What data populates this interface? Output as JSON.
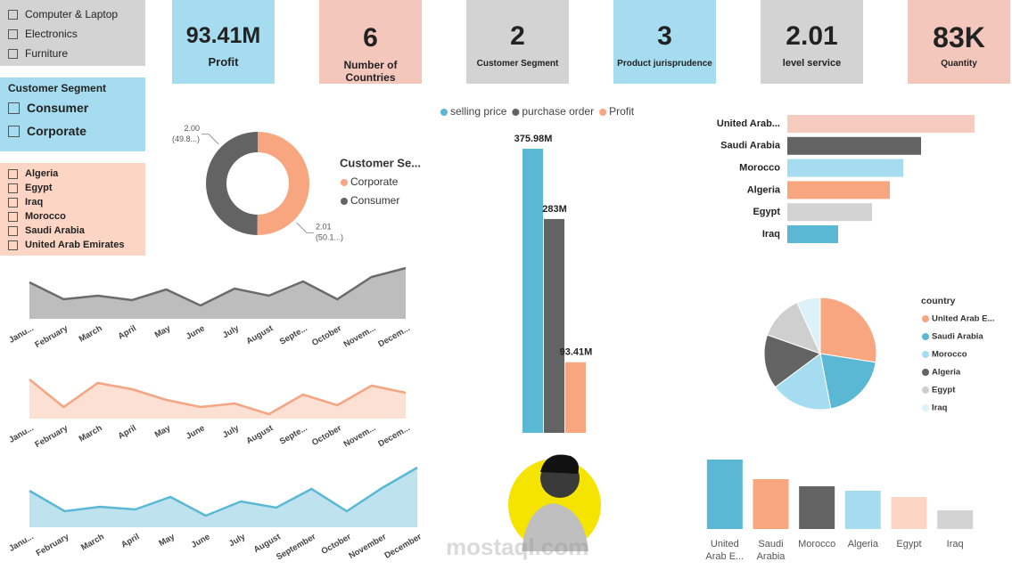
{
  "slicers": [
    {
      "items": [
        "Computer & Laptop",
        "Electronics",
        "Furniture"
      ]
    },
    {
      "title": "Customer Segment",
      "items": [
        "Consumer",
        "Corporate"
      ]
    },
    {
      "items": [
        "Algeria",
        "Egypt",
        "Iraq",
        "Morocco",
        "Saudi Arabia",
        "United Arab Emirates"
      ]
    }
  ],
  "cards": [
    {
      "value": "93.41M",
      "label": "Profit"
    },
    {
      "value": 6,
      "label": "Number of Countries"
    },
    {
      "value": 2,
      "label": "Customer Segment"
    },
    {
      "value": 3,
      "label": "Product jurisprudence"
    },
    {
      "value": 2.01,
      "label": "level service"
    },
    {
      "value": "83K",
      "label": "Quantity"
    }
  ],
  "watermark": "mostaql.com",
  "chart_data": [
    {
      "type": "donut",
      "legend_title": "Customer Se...",
      "categories": [
        "Corporate",
        "Consumer"
      ],
      "colors": [
        "#f8a67f",
        "#636363"
      ],
      "values": [
        2.01,
        2.0
      ],
      "value_labels": [
        "2.01",
        "2.00"
      ],
      "percent_labels": [
        "(50.1...)",
        "(49.8...)"
      ]
    },
    {
      "type": "area",
      "color": "#6b6b6b",
      "fill": "#bdbdbd",
      "categories": [
        "Janu...",
        "February",
        "March",
        "April",
        "May",
        "June",
        "July",
        "August",
        "Septe...",
        "October",
        "Novem...",
        "Decem..."
      ],
      "values": [
        41,
        22,
        26,
        21,
        33,
        15,
        34,
        26,
        42,
        22,
        47,
        57
      ],
      "ylim": [
        0,
        60
      ]
    },
    {
      "type": "area",
      "color": "#f4a582",
      "fill": "#fde0d4",
      "categories": [
        "Janu...",
        "February",
        "March",
        "April",
        "May",
        "June",
        "July",
        "August",
        "Septe...",
        "October",
        "Novem...",
        "Decem..."
      ],
      "values": [
        44,
        13,
        40,
        33,
        21,
        13,
        17,
        5,
        27,
        15,
        37,
        29
      ],
      "ylim": [
        0,
        50
      ]
    },
    {
      "type": "area",
      "color": "#5bb8d4",
      "fill": "#bfe3ee",
      "categories": [
        "Janu...",
        "February",
        "March",
        "April",
        "May",
        "June",
        "July",
        "August",
        "September",
        "October",
        "November",
        "December"
      ],
      "values": [
        41,
        18,
        23,
        20,
        34,
        13,
        29,
        22,
        43,
        18,
        44,
        67
      ],
      "ylim": [
        0,
        70
      ]
    },
    {
      "type": "bar",
      "categories": [
        null
      ],
      "ylim": [
        0,
        380
      ],
      "series": [
        {
          "name": "selling price",
          "color": "#5bb8d4",
          "values": [
            375.98
          ],
          "value_labels": [
            "375.98M"
          ]
        },
        {
          "name": "purchase order",
          "color": "#636363",
          "values": [
            283
          ],
          "value_labels": [
            "283M"
          ]
        },
        {
          "name": "Profit",
          "color": "#f8a67f",
          "values": [
            93.41
          ],
          "value_labels": [
            "93.41M"
          ]
        }
      ]
    },
    {
      "type": "hbar",
      "categories": [
        "United Arab...",
        "Saudi Arabia",
        "Morocco",
        "Algeria",
        "Egypt",
        "Iraq"
      ],
      "colors": [
        "#f6cbc0",
        "#636363",
        "#a5dcef",
        "#f8a67f",
        "#d3d3d3",
        "#5bb8d4"
      ],
      "values": [
        210,
        150,
        130,
        115,
        95,
        57
      ],
      "xlim": [
        0,
        220
      ]
    },
    {
      "type": "pie",
      "legend_title": "country",
      "categories": [
        "United Arab E...",
        "Saudi Arabia",
        "Morocco",
        "Algeria",
        "Egypt",
        "Iraq"
      ],
      "colors": [
        "#f8a67f",
        "#5bb8d4",
        "#a5dcef",
        "#636363",
        "#cfcfcf",
        "#ddf1f8"
      ],
      "values": [
        27.5,
        19.5,
        17.8,
        15.6,
        12.8,
        6.8
      ]
    },
    {
      "type": "column",
      "categories": [
        "United Arab E...",
        "Saudi Arabia",
        "Morocco",
        "Algeria",
        "Egypt",
        "Iraq"
      ],
      "colors": [
        "#5bb8d4",
        "#f8a67f",
        "#636363",
        "#a5dcef",
        "#fcd5c5",
        "#d3d3d3"
      ],
      "values": [
        78,
        56,
        48,
        43,
        36,
        21
      ],
      "ylim": [
        0,
        80
      ]
    }
  ]
}
